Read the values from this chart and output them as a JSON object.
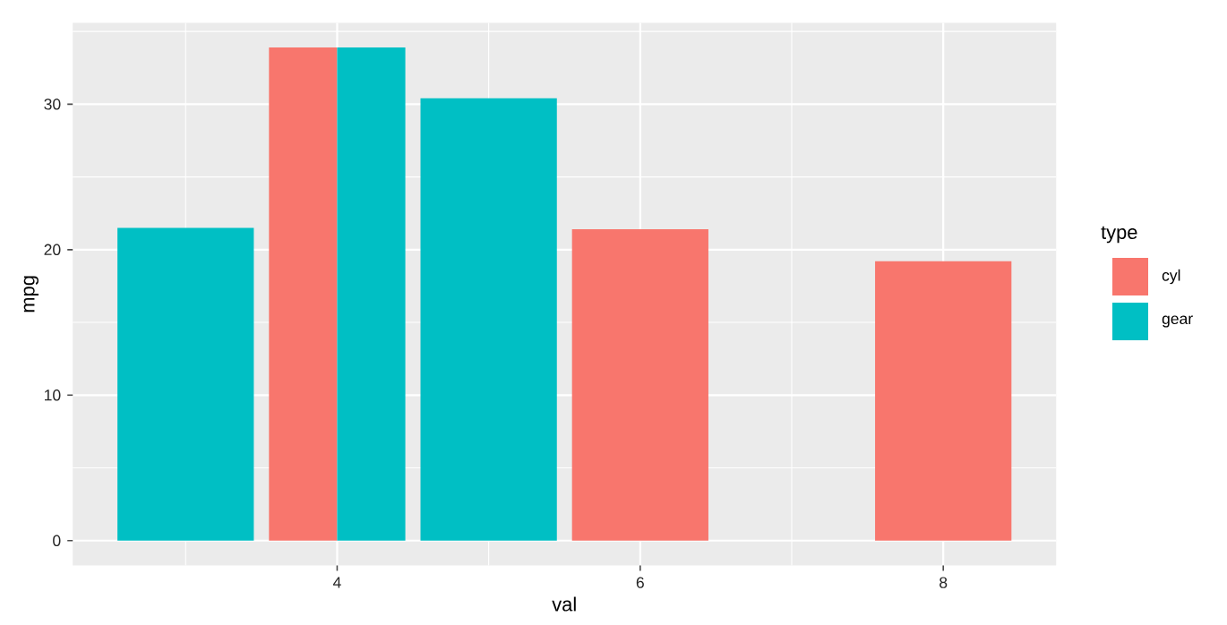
{
  "chart_data": {
    "type": "bar",
    "xlabel": "val",
    "ylabel": "mpg",
    "legend_title": "type",
    "series": [
      {
        "name": "cyl",
        "color": "#f8766d",
        "x": [
          4,
          6,
          8
        ],
        "values": [
          33.9,
          21.4,
          19.2
        ]
      },
      {
        "name": "gear",
        "color": "#00bfc4",
        "x": [
          3,
          4,
          5
        ],
        "values": [
          21.5,
          33.9,
          30.4
        ]
      }
    ],
    "xlim": [
      2.255,
      8.745
    ],
    "ylim": [
      -1.7,
      35.6
    ],
    "xticks": [
      4,
      6,
      8
    ],
    "yticks": [
      0,
      10,
      20,
      30
    ],
    "grid": true,
    "legend": "right"
  }
}
